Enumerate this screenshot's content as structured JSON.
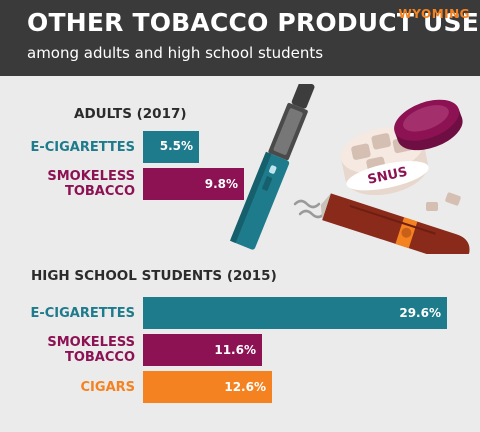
{
  "header": {
    "title": "OTHER TOBACCO PRODUCT USE",
    "subtitle": "among adults and high school students",
    "state": "WYOMING"
  },
  "illustration": {
    "snus_label": "SNUS",
    "icons": [
      "e-cigarette-icon",
      "snus-tin-icon",
      "cigar-icon",
      "smoke-icon"
    ]
  },
  "colors": {
    "e_cigarettes": "#1e7b8c",
    "smokeless_tobacco": "#8c1254",
    "cigars": "#f58220",
    "header_bg": "#3a3a3a",
    "background": "#ebebeb"
  },
  "chart_data": [
    {
      "type": "bar",
      "orientation": "horizontal",
      "title": "ADULTS (2017)",
      "categories": [
        "E-CIGARETTES",
        "SMOKELESS\nTOBACCO"
      ],
      "values": [
        5.5,
        9.8
      ],
      "value_labels": [
        "5.5%",
        "9.8%"
      ],
      "unit": "%",
      "xlim": [
        0,
        30
      ]
    },
    {
      "type": "bar",
      "orientation": "horizontal",
      "title": "HIGH SCHOOL STUDENTS (2015)",
      "categories": [
        "E-CIGARETTES",
        "SMOKELESS\nTOBACCO",
        "CIGARS"
      ],
      "values": [
        29.6,
        11.6,
        12.6
      ],
      "value_labels": [
        "29.6%",
        "11.6%",
        "12.6%"
      ],
      "unit": "%",
      "xlim": [
        0,
        30
      ]
    }
  ]
}
